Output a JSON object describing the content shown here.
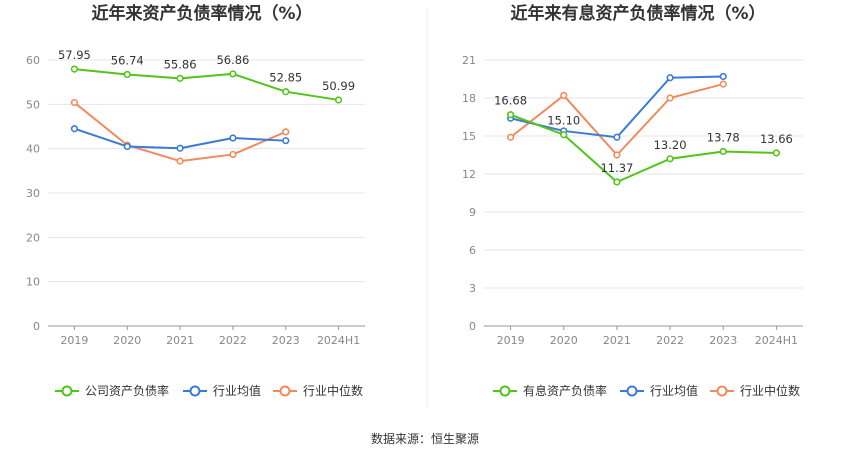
{
  "source_label": "数据来源：恒生聚源",
  "chart_data": [
    {
      "type": "line",
      "title": "近年来资产负债率情况（%）",
      "categories": [
        "2019",
        "2020",
        "2021",
        "2022",
        "2023",
        "2024H1"
      ],
      "ylim": [
        0,
        60
      ],
      "yticks": [
        0,
        10,
        20,
        30,
        40,
        50,
        60
      ],
      "grid": true,
      "legend_position": "bottom",
      "series": [
        {
          "name": "公司资产负债率",
          "color": "#52c41a",
          "values": [
            57.95,
            56.74,
            55.86,
            56.86,
            52.85,
            50.99
          ],
          "labels": [
            "57.95",
            "56.74",
            "55.86",
            "56.86",
            "52.85",
            "50.99"
          ]
        },
        {
          "name": "行业均值",
          "color": "#3a7bd5",
          "values": [
            44.5,
            40.5,
            40.1,
            42.4,
            41.8,
            null
          ]
        },
        {
          "name": "行业中位数",
          "color": "#f08b5d",
          "values": [
            50.4,
            40.8,
            37.2,
            38.7,
            43.8,
            null
          ]
        }
      ]
    },
    {
      "type": "line",
      "title": "近年来有息资产负债率情况（%）",
      "categories": [
        "2019",
        "2020",
        "2021",
        "2022",
        "2023",
        "2024H1"
      ],
      "ylim": [
        0,
        21
      ],
      "yticks": [
        0,
        3,
        6,
        9,
        12,
        15,
        18,
        21
      ],
      "grid": true,
      "legend_position": "bottom",
      "series": [
        {
          "name": "有息资产负债率",
          "color": "#52c41a",
          "values": [
            16.68,
            15.1,
            11.37,
            13.2,
            13.78,
            13.66
          ],
          "labels": [
            "16.68",
            "15.10",
            "11.37",
            "13.20",
            "13.78",
            "13.66"
          ]
        },
        {
          "name": "行业均值",
          "color": "#3a7bd5",
          "values": [
            16.4,
            15.4,
            14.9,
            19.6,
            19.7,
            null
          ]
        },
        {
          "name": "行业中位数",
          "color": "#f08b5d",
          "values": [
            14.9,
            18.2,
            13.5,
            18.0,
            19.1,
            null
          ]
        }
      ]
    }
  ]
}
